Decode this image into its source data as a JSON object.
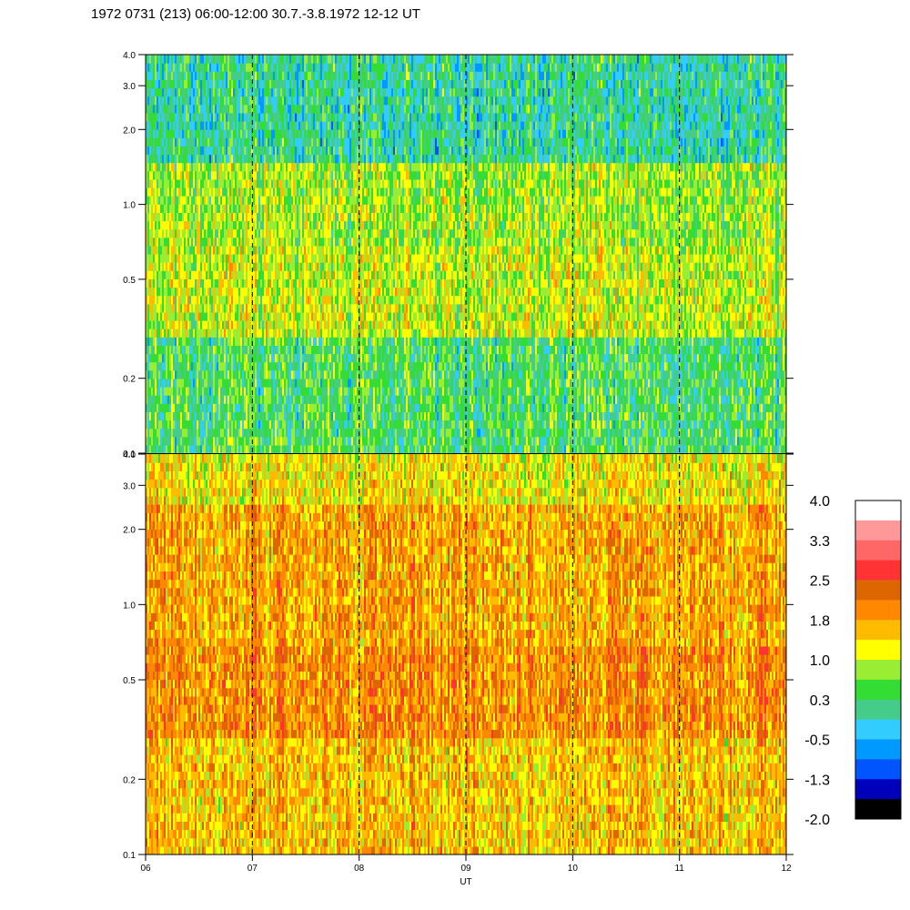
{
  "chart_data": {
    "type": "heatmap",
    "title": "1972 0731 (213) 06:00-12:00 30.7.-3.8.1972  12-12 UT",
    "xlabel": "UT",
    "x_ticks": [
      "06",
      "07",
      "08",
      "09",
      "10",
      "11",
      "12"
    ],
    "xlim": [
      6,
      12
    ],
    "y_scale": "log",
    "ylim": [
      0.1,
      4.0
    ],
    "y_ticks": [
      "0.1",
      "0.2",
      "0.5",
      "1.0",
      "2.0",
      "3.0",
      "4.0"
    ],
    "vertical_dashed_lines_at": [
      7,
      8,
      9,
      10,
      11
    ],
    "panels": [
      {
        "name": "upper",
        "y_ticks": [
          "0.1",
          "0.2",
          "0.5",
          "1.0",
          "2.0",
          "3.0",
          "4.0"
        ],
        "dominant_levels": {
          "0.1-0.3": 0.3,
          "0.3-0.7": 1.0,
          "0.7-1.5": 0.8,
          "1.5-4.0": 0.0
        }
      },
      {
        "name": "lower",
        "y_ticks": [
          "0.1",
          "0.2",
          "0.5",
          "1.0",
          "2.0",
          "3.0",
          "4.0"
        ],
        "dominant_levels": {
          "0.1-0.3": 1.6,
          "0.3-0.7": 2.0,
          "0.7-2.5": 1.8,
          "2.5-4.0": 1.3
        }
      }
    ],
    "colorbar": {
      "labels": [
        "4.0",
        "3.3",
        "2.5",
        "1.8",
        "1.0",
        "0.3",
        "-0.5",
        "-1.3",
        "-2.0"
      ],
      "colors": [
        "#ffffff",
        "#ff9999",
        "#ff6666",
        "#ff3333",
        "#dd6600",
        "#ff8800",
        "#ffbb00",
        "#ffff00",
        "#99ee33",
        "#33dd33",
        "#44cc88",
        "#33ccff",
        "#0099ff",
        "#0055ff",
        "#0000bb",
        "#000000"
      ]
    }
  }
}
